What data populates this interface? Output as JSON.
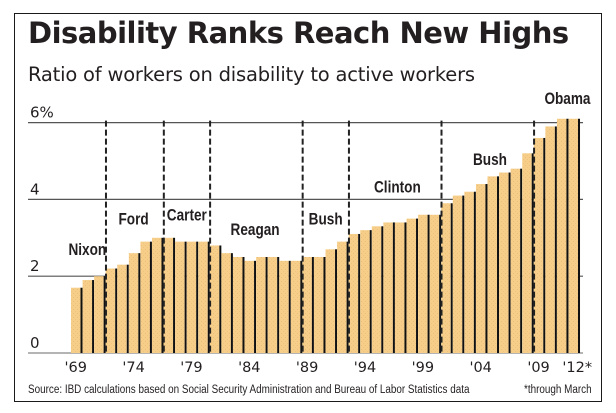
{
  "chart_data": {
    "type": "bar",
    "title": "Disability Ranks Reach New Highs",
    "subtitle": "Ratio of workers on disability to active workers",
    "xlabel": "",
    "ylabel": "",
    "ylim": [
      0,
      6.3
    ],
    "yticks": [
      {
        "value": 0,
        "label": "0"
      },
      {
        "value": 2,
        "label": "2"
      },
      {
        "value": 4,
        "label": "4"
      },
      {
        "value": 6,
        "label": "6%"
      }
    ],
    "grid": true,
    "categories": [
      "1969",
      "1970",
      "1971",
      "1972",
      "1973",
      "1974",
      "1975",
      "1976",
      "1977",
      "1978",
      "1979",
      "1980",
      "1981",
      "1982",
      "1983",
      "1984",
      "1985",
      "1986",
      "1987",
      "1988",
      "1989",
      "1990",
      "1991",
      "1992",
      "1993",
      "1994",
      "1995",
      "1996",
      "1997",
      "1998",
      "1999",
      "2000",
      "2001",
      "2002",
      "2003",
      "2004",
      "2005",
      "2006",
      "2007",
      "2008",
      "2009",
      "2010",
      "2011",
      "2012"
    ],
    "values": [
      1.7,
      1.9,
      2.0,
      2.2,
      2.3,
      2.6,
      2.9,
      3.0,
      3.0,
      2.9,
      2.9,
      2.9,
      2.8,
      2.6,
      2.5,
      2.4,
      2.5,
      2.5,
      2.4,
      2.4,
      2.5,
      2.5,
      2.7,
      2.9,
      3.1,
      3.2,
      3.3,
      3.4,
      3.4,
      3.5,
      3.6,
      3.6,
      3.9,
      4.1,
      4.2,
      4.4,
      4.6,
      4.7,
      4.8,
      5.2,
      5.6,
      5.9,
      6.1,
      6.1
    ],
    "xtick_labels": [
      {
        "index": 0,
        "label": "'69"
      },
      {
        "index": 5,
        "label": "'74"
      },
      {
        "index": 10,
        "label": "'79"
      },
      {
        "index": 15,
        "label": "'84"
      },
      {
        "index": 20,
        "label": "'89"
      },
      {
        "index": 25,
        "label": "'94"
      },
      {
        "index": 30,
        "label": "'99"
      },
      {
        "index": 35,
        "label": "'04"
      },
      {
        "index": 40,
        "label": "'09"
      },
      {
        "index": 43,
        "label": "'12*"
      }
    ],
    "divider_after_index": [
      2,
      7,
      11,
      19,
      23,
      31,
      39
    ],
    "annotations": [
      {
        "label": "Nixon",
        "center_index": 1,
        "y_value": 2.55
      },
      {
        "label": "Ford",
        "center_index": 5,
        "y_value": 3.35
      },
      {
        "label": "Carter",
        "center_index": 9.6,
        "y_value": 3.45
      },
      {
        "label": "Reagan",
        "center_index": 15.5,
        "y_value": 3.07
      },
      {
        "label": "Bush",
        "center_index": 21.6,
        "y_value": 3.35
      },
      {
        "label": "Clinton",
        "center_index": 27.8,
        "y_value": 4.18
      },
      {
        "label": "Bush",
        "center_index": 35.8,
        "y_value": 4.9
      },
      {
        "label": "Obama",
        "center_index": 42.5,
        "y_value": 6.48
      }
    ],
    "colors": {
      "bar": "#f6ce89",
      "bar_edge": "#111111",
      "grid": "#555555",
      "divider": "#222222"
    }
  },
  "header": {
    "title": "Disability Ranks Reach New Highs",
    "subtitle": "Ratio of workers on disability to active workers"
  },
  "footer": {
    "source": "Source: IBD calculations based on Social Security Administration and Bureau of Labor Statistics data",
    "footnote": "*through March"
  }
}
